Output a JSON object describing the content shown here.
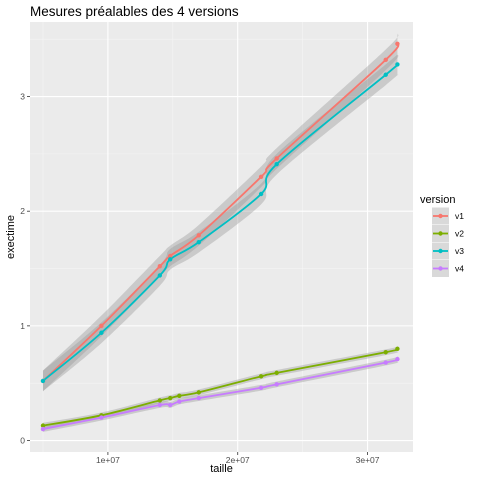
{
  "chart_data": {
    "type": "line",
    "title": "Mesures préalables des 4 versions",
    "xlabel": "taille",
    "ylabel": "exectime",
    "xlim": [
      4000000,
      33500000
    ],
    "ylim": [
      -0.1,
      3.65
    ],
    "x_ticks": [
      10000000,
      20000000,
      30000000
    ],
    "x_tick_labels": [
      "1e+07",
      "2e+07",
      "3e+07"
    ],
    "y_ticks": [
      0,
      1,
      2,
      3
    ],
    "y_tick_labels": [
      "0",
      "1",
      "2",
      "3"
    ],
    "grid": true,
    "smoothing": "loess with confidence band",
    "legend": {
      "title": "version",
      "position": "right"
    },
    "series": [
      {
        "name": "v1",
        "color": "#F8766D",
        "x": [
          5000000,
          9500000,
          14000000,
          14800000,
          17000000,
          21800000,
          23000000,
          31400000,
          32300000
        ],
        "y": [
          0.52,
          1.0,
          1.52,
          1.61,
          1.79,
          2.3,
          2.46,
          3.32,
          3.46
        ]
      },
      {
        "name": "v2",
        "color": "#7CAE00",
        "x": [
          5000000,
          9500000,
          14000000,
          14800000,
          15500000,
          17000000,
          21800000,
          23000000,
          31400000,
          32300000
        ],
        "y": [
          0.13,
          0.22,
          0.35,
          0.37,
          0.39,
          0.42,
          0.56,
          0.59,
          0.77,
          0.8
        ]
      },
      {
        "name": "v3",
        "color": "#00BFC4",
        "x": [
          5000000,
          9500000,
          14000000,
          14800000,
          17000000,
          21800000,
          23000000,
          31400000,
          32300000
        ],
        "y": [
          0.52,
          0.94,
          1.44,
          1.58,
          1.73,
          2.15,
          2.41,
          3.19,
          3.28
        ]
      },
      {
        "name": "v4",
        "color": "#C77CFF",
        "x": [
          5000000,
          9500000,
          14000000,
          14800000,
          15500000,
          17000000,
          21800000,
          23000000,
          31400000,
          32300000
        ],
        "y": [
          0.1,
          0.2,
          0.31,
          0.31,
          0.34,
          0.37,
          0.46,
          0.49,
          0.68,
          0.71
        ]
      }
    ]
  }
}
